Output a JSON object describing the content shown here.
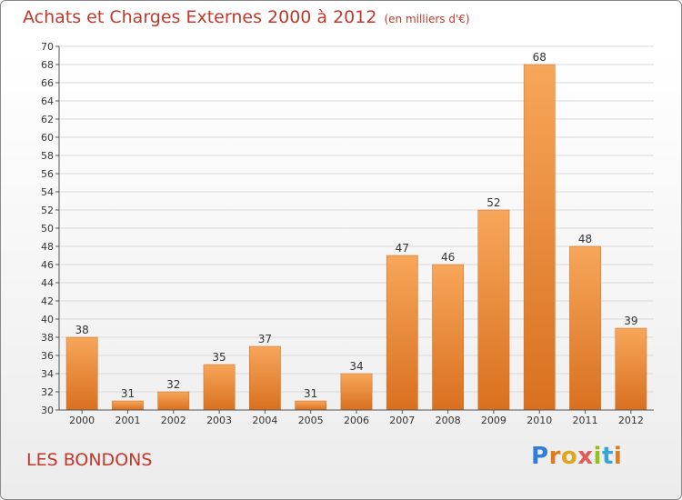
{
  "header": {
    "title": "Achats et Charges Externes 2000 à 2012",
    "unit": "(en milliers d'€)"
  },
  "footer": {
    "commune": "LES BONDONS",
    "logo_text": "Proxiti"
  },
  "chart_data": {
    "type": "bar",
    "title": "Achats et Charges Externes 2000 à 2012",
    "subtitle": "(en milliers d'€)",
    "xlabel": "",
    "ylabel": "",
    "categories": [
      "2000",
      "2001",
      "2002",
      "2003",
      "2004",
      "2005",
      "2006",
      "2007",
      "2008",
      "2009",
      "2010",
      "2011",
      "2012"
    ],
    "values": [
      38,
      31,
      32,
      35,
      37,
      31,
      34,
      47,
      46,
      52,
      68,
      48,
      39
    ],
    "ylim": [
      30,
      70
    ],
    "ytick_step": 2,
    "grid": true,
    "bar_color": "#f0923a",
    "bar_color_top": "#f7a65a",
    "bar_color_bottom": "#d9701f"
  },
  "colors": {
    "title": "#c0392b",
    "grid": "#d9d9d9",
    "axis": "#555555"
  }
}
